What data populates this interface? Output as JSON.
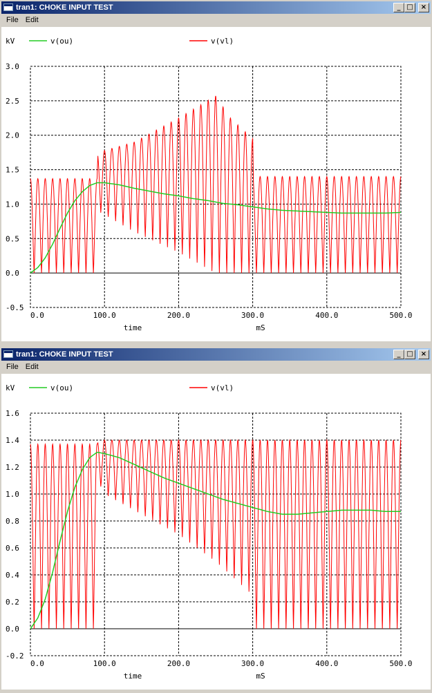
{
  "windows": [
    {
      "title": "tran1: CHOKE INPUT TEST",
      "menu": [
        "File",
        "Edit"
      ],
      "chart_data": {
        "type": "line",
        "ylabel": "kV",
        "xlabel": "time",
        "xunit": "mS",
        "xlim": [
          0,
          500
        ],
        "ylim": [
          -0.5,
          3.0
        ],
        "xticks": [
          0,
          100,
          200,
          300,
          400,
          500
        ],
        "xtick_labels": [
          "0.0",
          "100.0",
          "200.0",
          "300.0",
          "400.0",
          "500.0"
        ],
        "yticks": [
          -0.5,
          0.0,
          0.5,
          1.0,
          1.5,
          2.0,
          2.5,
          3.0
        ],
        "ytick_labels": [
          "-0.5",
          "0.0",
          "0.5",
          "1.0",
          "1.5",
          "2.0",
          "2.5",
          "3.0"
        ],
        "grid": true,
        "legend_position": "top",
        "series": [
          {
            "name": "v(ou)",
            "color": "#22cc22",
            "x": [
              0,
              10,
              20,
              30,
              40,
              50,
              60,
              70,
              80,
              90,
              100,
              120,
              140,
              160,
              180,
              200,
              220,
              240,
              260,
              280,
              300,
              320,
              340,
              360,
              380,
              400,
              420,
              440,
              460,
              480,
              500
            ],
            "y": [
              0,
              0.08,
              0.22,
              0.42,
              0.65,
              0.87,
              1.05,
              1.18,
              1.27,
              1.31,
              1.31,
              1.28,
              1.23,
              1.19,
              1.15,
              1.12,
              1.08,
              1.05,
              1.01,
              0.99,
              0.96,
              0.93,
              0.91,
              0.9,
              0.89,
              0.88,
              0.87,
              0.87,
              0.87,
              0.87,
              0.88
            ]
          },
          {
            "name": "v(vl)",
            "color": "#ff0000",
            "x": [
              0,
              90,
              91,
              140,
              200,
              250,
              270,
              300,
              301,
              500
            ],
            "ymax": [
              1.37,
              1.37,
              1.75,
              1.9,
              2.25,
              2.57,
              2.25,
              1.95,
              1.4,
              1.4
            ],
            "ymin": [
              0.0,
              0.0,
              0.9,
              0.6,
              0.3,
              0.0,
              0.0,
              0.0,
              0.0,
              0.0
            ]
          }
        ]
      }
    },
    {
      "title": "tran1: CHOKE INPUT TEST",
      "menu": [
        "File",
        "Edit"
      ],
      "chart_data": {
        "type": "line",
        "ylabel": "kV",
        "xlabel": "time",
        "xunit": "mS",
        "xlim": [
          0,
          500
        ],
        "ylim": [
          -0.2,
          1.6
        ],
        "xticks": [
          0,
          100,
          200,
          300,
          400,
          500
        ],
        "xtick_labels": [
          "0.0",
          "100.0",
          "200.0",
          "300.0",
          "400.0",
          "500.0"
        ],
        "yticks": [
          -0.2,
          0.0,
          0.2,
          0.4,
          0.6,
          0.8,
          1.0,
          1.2,
          1.4,
          1.6
        ],
        "ytick_labels": [
          "-0.2",
          "0.0",
          "0.2",
          "0.4",
          "0.6",
          "0.8",
          "1.0",
          "1.2",
          "1.4",
          "1.6"
        ],
        "grid": true,
        "legend_position": "top",
        "series": [
          {
            "name": "v(ou)",
            "color": "#22cc22",
            "x": [
              0,
              10,
              20,
              30,
              40,
              50,
              60,
              70,
              80,
              90,
              100,
              120,
              140,
              160,
              180,
              200,
              220,
              240,
              260,
              280,
              300,
              320,
              340,
              360,
              380,
              400,
              420,
              440,
              460,
              480,
              500
            ],
            "y": [
              0,
              0.08,
              0.22,
              0.42,
              0.65,
              0.87,
              1.05,
              1.18,
              1.27,
              1.31,
              1.3,
              1.27,
              1.22,
              1.17,
              1.12,
              1.08,
              1.04,
              1.0,
              0.96,
              0.93,
              0.9,
              0.87,
              0.85,
              0.85,
              0.86,
              0.87,
              0.88,
              0.88,
              0.88,
              0.87,
              0.87
            ]
          },
          {
            "name": "v(vl)",
            "color": "#ff0000",
            "x": [
              0,
              90,
              91,
              100,
              150,
              200,
              250,
              300,
              301,
              500
            ],
            "ymax": [
              1.37,
              1.37,
              1.4,
              1.4,
              1.4,
              1.4,
              1.4,
              1.4,
              1.4,
              1.4
            ],
            "ymin": [
              0.0,
              0.0,
              1.1,
              1.0,
              0.85,
              0.7,
              0.5,
              0.25,
              0.0,
              0.0
            ]
          }
        ]
      }
    }
  ]
}
